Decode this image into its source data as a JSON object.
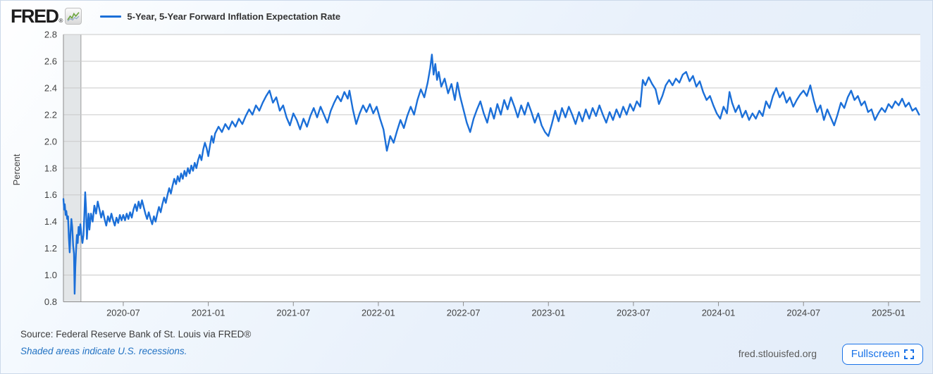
{
  "header": {
    "logo": {
      "text": "FRED",
      "registered": "®",
      "icon": "fred-sparkline-icon"
    },
    "legend": {
      "marker_color": "#1b6fd8",
      "label": "5-Year, 5-Year Forward Inflation Expectation Rate"
    }
  },
  "chart_data": {
    "type": "line",
    "title": "5-Year, 5-Year Forward Inflation Expectation Rate",
    "xlabel": "",
    "ylabel": "Percent",
    "legend_position": "top-left",
    "grid": true,
    "line_color": "#1b6fd8",
    "recession_band_color": "#e3e6e8",
    "ylim": [
      0.8,
      2.8
    ],
    "y_ticks": [
      0.8,
      1.0,
      1.2,
      1.4,
      1.6,
      1.8,
      2.0,
      2.2,
      2.4,
      2.6,
      2.8
    ],
    "x_domain": [
      2020.148,
      2025.187
    ],
    "x_ticks": [
      {
        "label": "2020-07",
        "year": 2020.5
      },
      {
        "label": "2021-01",
        "year": 2021.0
      },
      {
        "label": "2021-07",
        "year": 2021.5
      },
      {
        "label": "2022-01",
        "year": 2022.0
      },
      {
        "label": "2022-07",
        "year": 2022.5
      },
      {
        "label": "2023-01",
        "year": 2023.0
      },
      {
        "label": "2023-07",
        "year": 2023.5
      },
      {
        "label": "2024-01",
        "year": 2024.0
      },
      {
        "label": "2024-07",
        "year": 2024.5
      },
      {
        "label": "2025-01",
        "year": 2025.0
      }
    ],
    "recession_bands": [
      {
        "start": 2020.148,
        "end": 2020.251
      }
    ],
    "series_name": "5-Year, 5-Year Forward Inflation Expectation Rate",
    "points": [
      [
        2020.148,
        1.57
      ],
      [
        2020.152,
        1.49
      ],
      [
        2020.156,
        1.53
      ],
      [
        2020.161,
        1.45
      ],
      [
        2020.165,
        1.48
      ],
      [
        2020.17,
        1.42
      ],
      [
        2020.175,
        1.44
      ],
      [
        2020.18,
        1.28
      ],
      [
        2020.185,
        1.17
      ],
      [
        2020.19,
        1.32
      ],
      [
        2020.195,
        1.42
      ],
      [
        2020.2,
        1.36
      ],
      [
        2020.205,
        1.22
      ],
      [
        2020.21,
        1.16
      ],
      [
        2020.214,
        0.86
      ],
      [
        2020.218,
        1.06
      ],
      [
        2020.222,
        1.18
      ],
      [
        2020.227,
        1.3
      ],
      [
        2020.232,
        1.24
      ],
      [
        2020.237,
        1.36
      ],
      [
        2020.242,
        1.3
      ],
      [
        2020.248,
        1.38
      ],
      [
        2020.254,
        1.3
      ],
      [
        2020.26,
        1.24
      ],
      [
        2020.266,
        1.3
      ],
      [
        2020.271,
        1.45
      ],
      [
        2020.276,
        1.62
      ],
      [
        2020.281,
        1.5
      ],
      [
        2020.286,
        1.27
      ],
      [
        2020.291,
        1.38
      ],
      [
        2020.296,
        1.46
      ],
      [
        2020.301,
        1.34
      ],
      [
        2020.31,
        1.46
      ],
      [
        2020.32,
        1.4
      ],
      [
        2020.33,
        1.52
      ],
      [
        2020.34,
        1.46
      ],
      [
        2020.35,
        1.55
      ],
      [
        2020.36,
        1.49
      ],
      [
        2020.37,
        1.43
      ],
      [
        2020.38,
        1.48
      ],
      [
        2020.39,
        1.42
      ],
      [
        2020.4,
        1.37
      ],
      [
        2020.41,
        1.44
      ],
      [
        2020.42,
        1.4
      ],
      [
        2020.43,
        1.46
      ],
      [
        2020.44,
        1.41
      ],
      [
        2020.45,
        1.37
      ],
      [
        2020.46,
        1.43
      ],
      [
        2020.47,
        1.39
      ],
      [
        2020.48,
        1.45
      ],
      [
        2020.49,
        1.41
      ],
      [
        2020.5,
        1.45
      ],
      [
        2020.51,
        1.41
      ],
      [
        2020.52,
        1.46
      ],
      [
        2020.53,
        1.42
      ],
      [
        2020.54,
        1.47
      ],
      [
        2020.55,
        1.43
      ],
      [
        2020.56,
        1.49
      ],
      [
        2020.57,
        1.53
      ],
      [
        2020.58,
        1.48
      ],
      [
        2020.59,
        1.55
      ],
      [
        2020.6,
        1.5
      ],
      [
        2020.61,
        1.56
      ],
      [
        2020.62,
        1.51
      ],
      [
        2020.63,
        1.46
      ],
      [
        2020.64,
        1.42
      ],
      [
        2020.65,
        1.47
      ],
      [
        2020.66,
        1.42
      ],
      [
        2020.67,
        1.38
      ],
      [
        2020.68,
        1.44
      ],
      [
        2020.69,
        1.4
      ],
      [
        2020.7,
        1.46
      ],
      [
        2020.71,
        1.51
      ],
      [
        2020.72,
        1.47
      ],
      [
        2020.73,
        1.53
      ],
      [
        2020.74,
        1.58
      ],
      [
        2020.75,
        1.54
      ],
      [
        2020.76,
        1.6
      ],
      [
        2020.77,
        1.65
      ],
      [
        2020.78,
        1.61
      ],
      [
        2020.79,
        1.67
      ],
      [
        2020.8,
        1.72
      ],
      [
        2020.81,
        1.68
      ],
      [
        2020.82,
        1.74
      ],
      [
        2020.83,
        1.7
      ],
      [
        2020.84,
        1.76
      ],
      [
        2020.85,
        1.72
      ],
      [
        2020.86,
        1.78
      ],
      [
        2020.87,
        1.74
      ],
      [
        2020.88,
        1.8
      ],
      [
        2020.89,
        1.76
      ],
      [
        2020.9,
        1.82
      ],
      [
        2020.91,
        1.78
      ],
      [
        2020.92,
        1.84
      ],
      [
        2020.93,
        1.8
      ],
      [
        2020.94,
        1.86
      ],
      [
        2020.95,
        1.9
      ],
      [
        2020.96,
        1.86
      ],
      [
        2020.97,
        1.94
      ],
      [
        2020.98,
        1.99
      ],
      [
        2020.99,
        1.95
      ],
      [
        2021.0,
        1.89
      ],
      [
        2021.01,
        1.97
      ],
      [
        2021.02,
        2.04
      ],
      [
        2021.03,
        1.99
      ],
      [
        2021.04,
        2.06
      ],
      [
        2021.06,
        2.11
      ],
      [
        2021.08,
        2.07
      ],
      [
        2021.1,
        2.13
      ],
      [
        2021.12,
        2.09
      ],
      [
        2021.14,
        2.15
      ],
      [
        2021.16,
        2.11
      ],
      [
        2021.18,
        2.17
      ],
      [
        2021.2,
        2.13
      ],
      [
        2021.22,
        2.19
      ],
      [
        2021.24,
        2.24
      ],
      [
        2021.26,
        2.2
      ],
      [
        2021.28,
        2.27
      ],
      [
        2021.3,
        2.23
      ],
      [
        2021.32,
        2.29
      ],
      [
        2021.34,
        2.34
      ],
      [
        2021.36,
        2.38
      ],
      [
        2021.38,
        2.29
      ],
      [
        2021.4,
        2.33
      ],
      [
        2021.42,
        2.23
      ],
      [
        2021.44,
        2.27
      ],
      [
        2021.46,
        2.18
      ],
      [
        2021.48,
        2.12
      ],
      [
        2021.5,
        2.21
      ],
      [
        2021.52,
        2.16
      ],
      [
        2021.54,
        2.09
      ],
      [
        2021.56,
        2.17
      ],
      [
        2021.58,
        2.11
      ],
      [
        2021.6,
        2.19
      ],
      [
        2021.62,
        2.25
      ],
      [
        2021.64,
        2.18
      ],
      [
        2021.66,
        2.26
      ],
      [
        2021.68,
        2.2
      ],
      [
        2021.7,
        2.14
      ],
      [
        2021.72,
        2.23
      ],
      [
        2021.74,
        2.29
      ],
      [
        2021.76,
        2.34
      ],
      [
        2021.78,
        2.3
      ],
      [
        2021.8,
        2.37
      ],
      [
        2021.82,
        2.32
      ],
      [
        2021.83,
        2.38
      ],
      [
        2021.85,
        2.24
      ],
      [
        2021.87,
        2.13
      ],
      [
        2021.89,
        2.21
      ],
      [
        2021.91,
        2.27
      ],
      [
        2021.93,
        2.22
      ],
      [
        2021.95,
        2.28
      ],
      [
        2021.97,
        2.21
      ],
      [
        2021.99,
        2.26
      ],
      [
        2022.01,
        2.17
      ],
      [
        2022.03,
        2.09
      ],
      [
        2022.05,
        1.93
      ],
      [
        2022.07,
        2.04
      ],
      [
        2022.09,
        1.99
      ],
      [
        2022.11,
        2.08
      ],
      [
        2022.13,
        2.16
      ],
      [
        2022.15,
        2.1
      ],
      [
        2022.17,
        2.19
      ],
      [
        2022.19,
        2.26
      ],
      [
        2022.21,
        2.2
      ],
      [
        2022.23,
        2.31
      ],
      [
        2022.25,
        2.39
      ],
      [
        2022.27,
        2.33
      ],
      [
        2022.29,
        2.44
      ],
      [
        2022.305,
        2.55
      ],
      [
        2022.315,
        2.65
      ],
      [
        2022.325,
        2.5
      ],
      [
        2022.335,
        2.58
      ],
      [
        2022.345,
        2.46
      ],
      [
        2022.355,
        2.52
      ],
      [
        2022.37,
        2.41
      ],
      [
        2022.39,
        2.47
      ],
      [
        2022.41,
        2.36
      ],
      [
        2022.43,
        2.43
      ],
      [
        2022.45,
        2.31
      ],
      [
        2022.465,
        2.44
      ],
      [
        2022.48,
        2.34
      ],
      [
        2022.5,
        2.24
      ],
      [
        2022.52,
        2.14
      ],
      [
        2022.54,
        2.07
      ],
      [
        2022.56,
        2.17
      ],
      [
        2022.58,
        2.24
      ],
      [
        2022.6,
        2.3
      ],
      [
        2022.62,
        2.21
      ],
      [
        2022.64,
        2.14
      ],
      [
        2022.66,
        2.25
      ],
      [
        2022.68,
        2.17
      ],
      [
        2022.7,
        2.28
      ],
      [
        2022.72,
        2.2
      ],
      [
        2022.74,
        2.31
      ],
      [
        2022.76,
        2.24
      ],
      [
        2022.78,
        2.33
      ],
      [
        2022.8,
        2.26
      ],
      [
        2022.82,
        2.18
      ],
      [
        2022.84,
        2.27
      ],
      [
        2022.86,
        2.2
      ],
      [
        2022.88,
        2.29
      ],
      [
        2022.9,
        2.22
      ],
      [
        2022.92,
        2.14
      ],
      [
        2022.94,
        2.21
      ],
      [
        2022.96,
        2.12
      ],
      [
        2022.98,
        2.07
      ],
      [
        2023.0,
        2.04
      ],
      [
        2023.02,
        2.13
      ],
      [
        2023.04,
        2.23
      ],
      [
        2023.06,
        2.15
      ],
      [
        2023.08,
        2.25
      ],
      [
        2023.1,
        2.18
      ],
      [
        2023.12,
        2.26
      ],
      [
        2023.14,
        2.2
      ],
      [
        2023.16,
        2.13
      ],
      [
        2023.18,
        2.22
      ],
      [
        2023.2,
        2.15
      ],
      [
        2023.22,
        2.24
      ],
      [
        2023.24,
        2.17
      ],
      [
        2023.26,
        2.25
      ],
      [
        2023.28,
        2.19
      ],
      [
        2023.3,
        2.27
      ],
      [
        2023.32,
        2.2
      ],
      [
        2023.34,
        2.14
      ],
      [
        2023.36,
        2.22
      ],
      [
        2023.38,
        2.16
      ],
      [
        2023.4,
        2.24
      ],
      [
        2023.42,
        2.18
      ],
      [
        2023.44,
        2.26
      ],
      [
        2023.46,
        2.2
      ],
      [
        2023.48,
        2.28
      ],
      [
        2023.5,
        2.23
      ],
      [
        2023.52,
        2.3
      ],
      [
        2023.54,
        2.26
      ],
      [
        2023.555,
        2.46
      ],
      [
        2023.57,
        2.42
      ],
      [
        2023.59,
        2.48
      ],
      [
        2023.61,
        2.43
      ],
      [
        2023.63,
        2.39
      ],
      [
        2023.65,
        2.28
      ],
      [
        2023.67,
        2.34
      ],
      [
        2023.69,
        2.42
      ],
      [
        2023.71,
        2.46
      ],
      [
        2023.73,
        2.42
      ],
      [
        2023.75,
        2.47
      ],
      [
        2023.77,
        2.44
      ],
      [
        2023.79,
        2.5
      ],
      [
        2023.81,
        2.52
      ],
      [
        2023.83,
        2.45
      ],
      [
        2023.85,
        2.49
      ],
      [
        2023.87,
        2.41
      ],
      [
        2023.89,
        2.45
      ],
      [
        2023.91,
        2.37
      ],
      [
        2023.93,
        2.31
      ],
      [
        2023.95,
        2.34
      ],
      [
        2023.97,
        2.27
      ],
      [
        2023.99,
        2.21
      ],
      [
        2024.01,
        2.17
      ],
      [
        2024.03,
        2.26
      ],
      [
        2024.05,
        2.21
      ],
      [
        2024.065,
        2.37
      ],
      [
        2024.08,
        2.29
      ],
      [
        2024.1,
        2.22
      ],
      [
        2024.12,
        2.27
      ],
      [
        2024.14,
        2.18
      ],
      [
        2024.16,
        2.23
      ],
      [
        2024.18,
        2.16
      ],
      [
        2024.2,
        2.21
      ],
      [
        2024.22,
        2.17
      ],
      [
        2024.24,
        2.23
      ],
      [
        2024.26,
        2.19
      ],
      [
        2024.28,
        2.3
      ],
      [
        2024.3,
        2.25
      ],
      [
        2024.32,
        2.34
      ],
      [
        2024.34,
        2.4
      ],
      [
        2024.36,
        2.33
      ],
      [
        2024.38,
        2.37
      ],
      [
        2024.4,
        2.29
      ],
      [
        2024.42,
        2.33
      ],
      [
        2024.44,
        2.26
      ],
      [
        2024.46,
        2.31
      ],
      [
        2024.48,
        2.35
      ],
      [
        2024.5,
        2.38
      ],
      [
        2024.52,
        2.34
      ],
      [
        2024.54,
        2.42
      ],
      [
        2024.56,
        2.31
      ],
      [
        2024.58,
        2.22
      ],
      [
        2024.6,
        2.27
      ],
      [
        2024.62,
        2.16
      ],
      [
        2024.64,
        2.24
      ],
      [
        2024.66,
        2.18
      ],
      [
        2024.68,
        2.12
      ],
      [
        2024.7,
        2.2
      ],
      [
        2024.72,
        2.29
      ],
      [
        2024.74,
        2.25
      ],
      [
        2024.76,
        2.33
      ],
      [
        2024.78,
        2.38
      ],
      [
        2024.8,
        2.31
      ],
      [
        2024.82,
        2.34
      ],
      [
        2024.84,
        2.27
      ],
      [
        2024.86,
        2.3
      ],
      [
        2024.88,
        2.22
      ],
      [
        2024.9,
        2.24
      ],
      [
        2024.92,
        2.16
      ],
      [
        2024.94,
        2.21
      ],
      [
        2024.96,
        2.25
      ],
      [
        2024.98,
        2.22
      ],
      [
        2025.0,
        2.28
      ],
      [
        2025.02,
        2.25
      ],
      [
        2025.04,
        2.3
      ],
      [
        2025.06,
        2.27
      ],
      [
        2025.08,
        2.32
      ],
      [
        2025.1,
        2.26
      ],
      [
        2025.12,
        2.29
      ],
      [
        2025.14,
        2.23
      ],
      [
        2025.16,
        2.25
      ],
      [
        2025.18,
        2.2
      ]
    ]
  },
  "footer": {
    "source_text": "Source: Federal Reserve Bank of St. Louis via FRED®",
    "recession_note": "Shaded areas indicate U.S. recessions.",
    "site_text": "fred.stlouisfed.org",
    "fullscreen": {
      "label": "Fullscreen",
      "icon": "fullscreen-expand-icon"
    }
  },
  "colors": {
    "gridline": "#c9c9c9",
    "axis": "#8c8c8c",
    "tick_label": "#424242",
    "accent_blue": "#1a73e8"
  }
}
